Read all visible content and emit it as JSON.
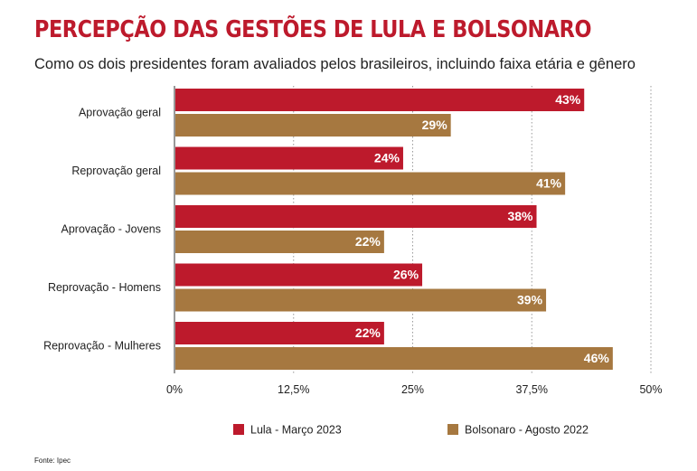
{
  "title": "PERCEPÇÃO DAS GESTÕES DE LULA E BOLSONARO",
  "subtitle": "Como os dois presidentes foram avaliados pelos brasileiros, incluindo faixa etária e gênero",
  "source": "Fonte: Ipec",
  "colors": {
    "title": "#bd1a2c",
    "lula": "#bd1a2c",
    "bolsonaro": "#a67840"
  },
  "chart_data": {
    "type": "bar",
    "orientation": "horizontal",
    "categories": [
      "Aprovação geral",
      "Reprovação geral",
      "Aprovação - Jovens",
      "Reprovação - Homens",
      "Reprovação - Mulheres"
    ],
    "series": [
      {
        "name": "Lula - Março 2023",
        "color": "#bd1a2c",
        "values": [
          43,
          24,
          38,
          26,
          22
        ],
        "labels": [
          "43%",
          "24%",
          "38%",
          "26%",
          "22%"
        ]
      },
      {
        "name": "Bolsonaro - Agosto 2022",
        "color": "#a67840",
        "values": [
          29,
          41,
          22,
          39,
          46
        ],
        "labels": [
          "29%",
          "41%",
          "22%",
          "39%",
          "46%"
        ]
      }
    ],
    "xlim": [
      0,
      50
    ],
    "xticks": [
      0,
      12.5,
      25,
      37.5,
      50
    ],
    "xtick_labels": [
      "0%",
      "12,5%",
      "25%",
      "37,5%",
      "50%"
    ],
    "grid": "vertical dotted",
    "legend": "bottom"
  }
}
